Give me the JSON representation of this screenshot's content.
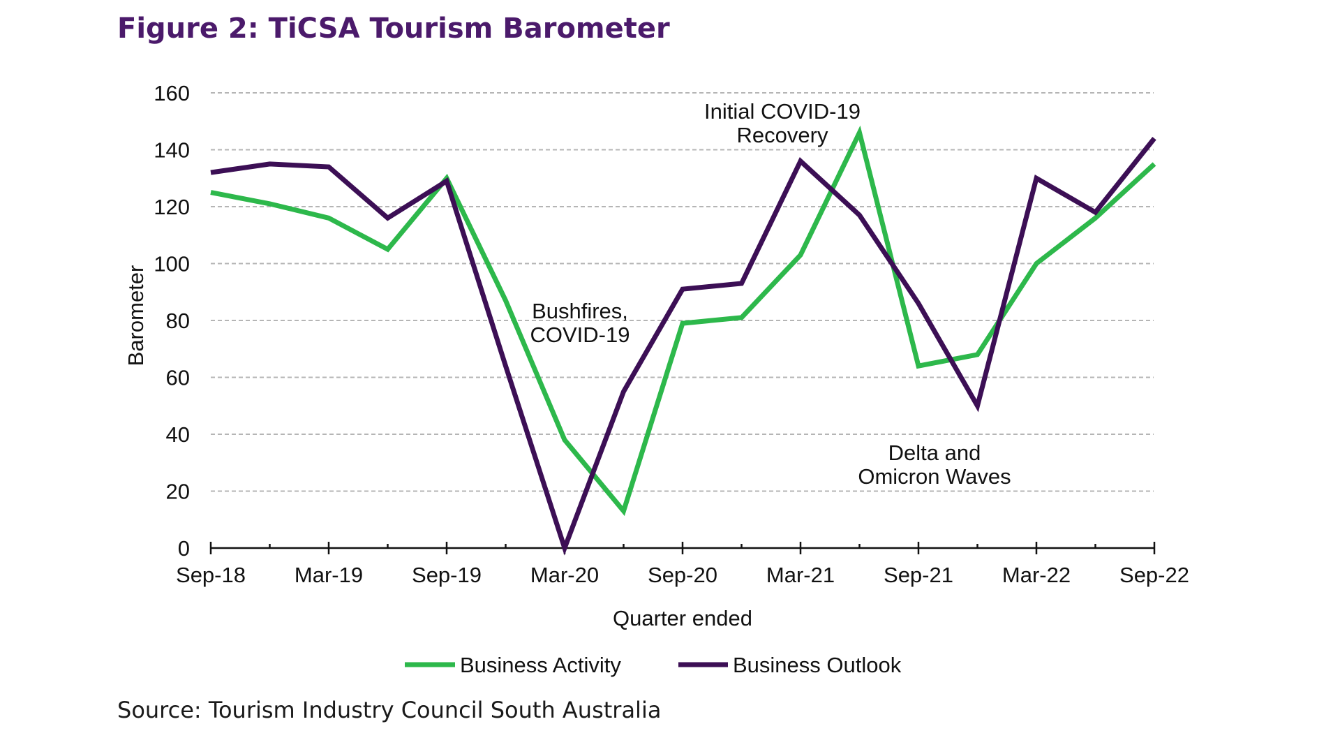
{
  "figure": {
    "title": "Figure 2: TiCSA Tourism Barometer",
    "source": "Source: Tourism Industry Council South Australia"
  },
  "chart_data": {
    "type": "line",
    "title": "Figure 2: TiCSA Tourism Barometer",
    "xlabel": "Quarter ended",
    "ylabel": "Barometer",
    "ylim": [
      0,
      160
    ],
    "yticks": [
      0,
      20,
      40,
      60,
      80,
      100,
      120,
      140,
      160
    ],
    "grid": true,
    "legend": "bottom",
    "categories": [
      "Sep-18",
      "Dec-18",
      "Mar-19",
      "Jun-19",
      "Sep-19",
      "Dec-19",
      "Mar-20",
      "Jun-20",
      "Sep-20",
      "Dec-20",
      "Mar-21",
      "Jun-21",
      "Sep-21",
      "Dec-21",
      "Mar-22",
      "Jun-22",
      "Sep-22"
    ],
    "x_tick_labels": [
      "Sep-18",
      "Mar-19",
      "Sep-19",
      "Mar-20",
      "Sep-20",
      "Mar-21",
      "Sep-21",
      "Mar-22",
      "Sep-22"
    ],
    "series": [
      {
        "name": "Business Activity",
        "color": "#2db84b",
        "values": [
          125,
          121,
          116,
          105,
          130,
          87,
          38,
          13,
          79,
          81,
          103,
          146,
          64,
          68,
          100,
          116,
          135
        ]
      },
      {
        "name": "Business Outlook",
        "color": "#3c0f55",
        "values": [
          132,
          135,
          134,
          116,
          129,
          64,
          0,
          55,
          91,
          93,
          136,
          117,
          86,
          50,
          130,
          118,
          144
        ]
      }
    ],
    "annotations": [
      {
        "lines": [
          "Bushfires,",
          "COVID-19"
        ]
      },
      {
        "lines": [
          "Initial COVID-19",
          "Recovery"
        ]
      },
      {
        "lines": [
          "Delta and",
          "Omicron Waves"
        ]
      }
    ]
  }
}
